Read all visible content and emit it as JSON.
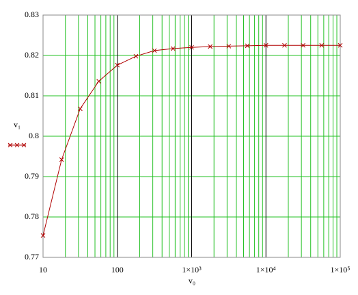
{
  "chart_data": {
    "type": "line",
    "x_label": "v₀",
    "x": [
      10,
      17.78,
      31.62,
      56.23,
      100,
      177.8,
      316.2,
      562.3,
      1000,
      1778,
      3162,
      5623,
      10000,
      17783,
      31623,
      56234,
      100000
    ],
    "series": [
      {
        "name": "v₁",
        "color": "#b00000",
        "marker": "x",
        "values": [
          0.7754,
          0.7942,
          0.8068,
          0.8136,
          0.8176,
          0.8198,
          0.8212,
          0.8217,
          0.822,
          0.8222,
          0.8223,
          0.8224,
          0.8225,
          0.8225,
          0.8225,
          0.8225,
          0.8225
        ]
      }
    ],
    "xlog": true,
    "xlim": [
      10,
      100000
    ],
    "xticks": [
      10,
      100,
      {
        "value": 1000,
        "label": "1×10³"
      },
      {
        "value": 10000,
        "label": "1×10⁴"
      },
      {
        "value": 100000,
        "label": "1×10⁵"
      }
    ],
    "xminorticks": [
      20,
      30,
      40,
      50,
      60,
      70,
      80,
      90,
      200,
      300,
      400,
      500,
      600,
      700,
      800,
      900,
      2000,
      3000,
      4000,
      5000,
      6000,
      7000,
      8000,
      9000,
      20000,
      30000,
      40000,
      50000,
      60000,
      70000,
      80000,
      90000
    ],
    "ylim": [
      0.77,
      0.83
    ],
    "yticks": [
      0.77,
      0.78,
      0.79,
      0.8,
      0.81,
      0.82,
      0.83
    ],
    "grid": true,
    "grid_color": "#22c022",
    "major_grid_color": "#000000"
  }
}
